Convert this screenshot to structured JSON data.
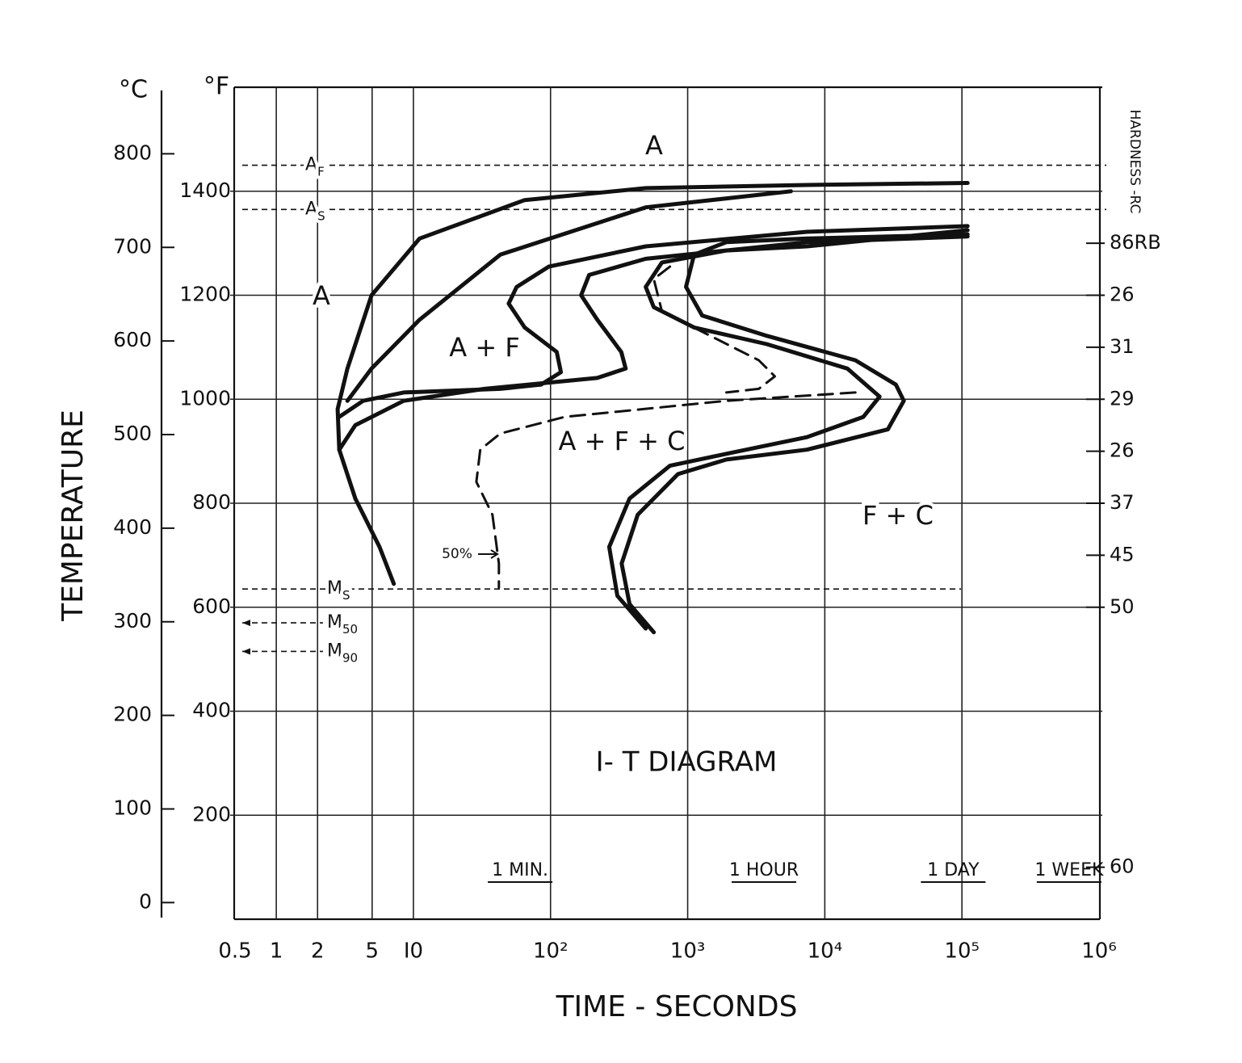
{
  "chart_data": {
    "type": "line",
    "title": "I- T DIAGRAM",
    "xlabel": "TIME - SECONDS",
    "ylabel": "TEMPERATURE",
    "y_unit": "°F",
    "y2_unit": "°C",
    "xscale": "log",
    "xlim": [
      0.5,
      1000000
    ],
    "xticks": [
      0.5,
      1,
      2,
      5,
      {
        "value": 10,
        "label": "I0"
      },
      {
        "value": 100,
        "label": "10²"
      },
      {
        "value": 1000,
        "label": "10³"
      },
      {
        "value": 10000,
        "label": "10⁴"
      },
      {
        "value": 100000,
        "label": "10⁵"
      },
      {
        "value": 1000000,
        "label": "10⁶"
      }
    ],
    "ylim": [
      0,
      1600
    ],
    "yticks": [
      200,
      400,
      600,
      800,
      1000,
      1200,
      1400
    ],
    "y2lim": [
      -17.8,
      871.1
    ],
    "y2ticks": [
      0,
      100,
      200,
      300,
      400,
      500,
      600,
      700,
      800
    ],
    "grid": true,
    "series": [
      {
        "color": "#111111",
        "style": "solid",
        "x": [
          110000,
          7400,
          494,
          64.8,
          11.1,
          4.95,
          3.3,
          2.8,
          2.88,
          3.77,
          5.66,
          7.2
        ],
        "values": [
          1416,
          1412,
          1406,
          1383,
          1309,
          1200,
          1059,
          981,
          903,
          809,
          716,
          645
        ]
      },
      {
        "color": "#111111",
        "style": "solid",
        "x": [
          5660,
          494,
          43,
          11.1,
          4.95,
          3.3
        ],
        "values": [
          1400,
          1369,
          1278,
          1153,
          1059,
          997
        ]
      },
      {
        "color": "#111111",
        "style": "solid",
        "x": [
          110000,
          7400,
          494,
          97,
          56.6,
          49.5,
          64.8,
          111,
          119,
          85,
          43,
          8.5,
          4.3,
          2.88
        ],
        "values": [
          1333,
          1322,
          1294,
          1255,
          1216,
          1184,
          1138,
          1091,
          1052,
          1028,
          1020,
          1013,
          997,
          966
        ]
      },
      {
        "color": "#111111",
        "style": "solid",
        "x": [
          110000,
          7400,
          494,
          191,
          167,
          219,
          328,
          353,
          219,
          33,
          8.5,
          3.77,
          2.88
        ],
        "values": [
          1313,
          1302,
          1270,
          1239,
          1200,
          1153,
          1091,
          1059,
          1041,
          1020,
          997,
          950,
          903
        ]
      },
      {
        "color": "#111111",
        "style": "solid",
        "x": [
          110000,
          7400,
          1915,
          649,
          494,
          566,
          1114,
          3770,
          14600,
          25100,
          19100,
          7400,
          1915,
          742,
          377,
          268,
          307,
          494
        ],
        "values": [
          1325,
          1294,
          1286,
          1263,
          1216,
          1177,
          1138,
          1106,
          1059,
          1005,
          966,
          927,
          895,
          872,
          809,
          716,
          622,
          559
        ]
      },
      {
        "color": "#111111",
        "style": "solid",
        "x": [
          110000,
          7400,
          1915,
          1114,
          973,
          1275,
          3770,
          16700,
          33000,
          37700,
          28800,
          7400,
          1915,
          850,
          432,
          330,
          377,
          566
        ],
        "values": [
          1317,
          1309,
          1302,
          1278,
          1216,
          1161,
          1122,
          1075,
          1028,
          997,
          942,
          903,
          884,
          856,
          778,
          684,
          606,
          552
        ]
      },
      {
        "color": "#111111",
        "style": "dashed",
        "x": [
          742,
          566,
          649,
          1460,
          3300,
          4320,
          3300,
          1915,
          null,
          16700,
          1915,
          127,
          43,
          30.7,
          28.8,
          37.7,
          42,
          42
        ],
        "values": [
          1255,
          1231,
          1169,
          1122,
          1075,
          1044,
          1020,
          1013,
          null,
          1013,
          997,
          966,
          934,
          903,
          841,
          778,
          684,
          638
        ]
      }
    ],
    "critical_points": [
      {
        "symbol": "A",
        "sub": "F",
        "value": 1450
      },
      {
        "symbol": "A",
        "sub": "S",
        "value": 1365
      },
      {
        "symbol": "M",
        "sub": "S",
        "value": 635
      },
      {
        "symbol": "M",
        "sub": "50",
        "value": 570
      },
      {
        "symbol": "M",
        "sub": "90",
        "value": 515
      }
    ],
    "time_marks": [
      {
        "label": "1 MIN.",
        "value": 60
      },
      {
        "label": "1 HOUR",
        "value": 3600
      },
      {
        "label": "1 DAY",
        "value": 86400
      },
      {
        "label": "1 WEEK",
        "value": 604800
      }
    ],
    "regions": [
      "A",
      "A",
      "A + F",
      "A + F + C",
      "F + C"
    ],
    "annotation": "50%",
    "hardness": {
      "title": "HARDNESS -RC",
      "temps": [
        1300,
        1200,
        1100,
        1000,
        900,
        800,
        700,
        600,
        100
      ],
      "labels": [
        "86RB",
        26,
        31,
        29,
        26,
        37,
        45,
        50,
        60
      ]
    }
  }
}
